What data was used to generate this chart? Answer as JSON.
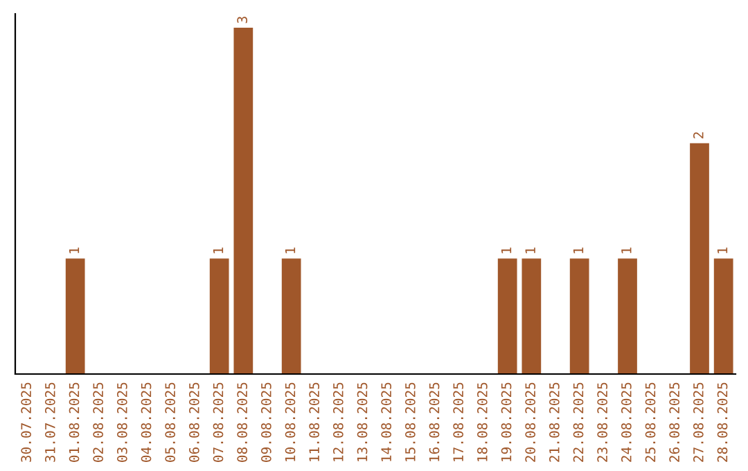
{
  "chart_data": {
    "type": "bar",
    "categories": [
      "30.07.2025",
      "31.07.2025",
      "01.08.2025",
      "02.08.2025",
      "03.08.2025",
      "04.08.2025",
      "05.08.2025",
      "06.08.2025",
      "07.08.2025",
      "08.08.2025",
      "09.08.2025",
      "10.08.2025",
      "11.08.2025",
      "12.08.2025",
      "13.08.2025",
      "14.08.2025",
      "15.08.2025",
      "16.08.2025",
      "17.08.2025",
      "18.08.2025",
      "19.08.2025",
      "20.08.2025",
      "21.08.2025",
      "22.08.2025",
      "23.08.2025",
      "24.08.2025",
      "25.08.2025",
      "26.08.2025",
      "27.08.2025",
      "28.08.2025"
    ],
    "values": [
      0,
      0,
      1,
      0,
      0,
      0,
      0,
      0,
      1,
      3,
      0,
      1,
      0,
      0,
      0,
      0,
      0,
      0,
      0,
      0,
      1,
      1,
      0,
      1,
      0,
      1,
      0,
      0,
      2,
      1
    ],
    "value_labels": [
      null,
      null,
      "1",
      null,
      null,
      null,
      null,
      null,
      "1",
      "3",
      null,
      "1",
      null,
      null,
      null,
      null,
      null,
      null,
      null,
      null,
      "1",
      "1",
      null,
      "1",
      null,
      "1",
      null,
      null,
      "2",
      "1"
    ],
    "color": "#a0572a",
    "grid": false,
    "legend": false
  }
}
